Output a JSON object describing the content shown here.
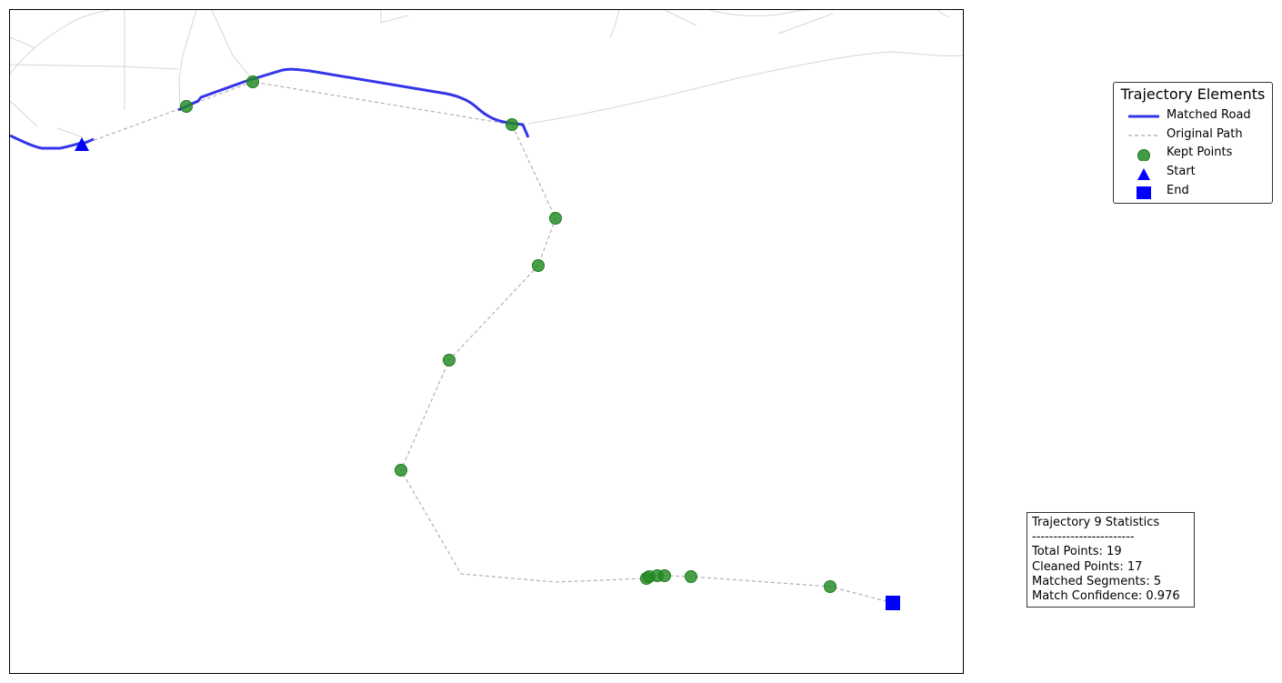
{
  "legend": {
    "title": "Trajectory Elements",
    "items": [
      {
        "label": "Matched Road",
        "symbol": "line-solid",
        "color": "#1f1fe6"
      },
      {
        "label": "Original Path",
        "symbol": "line-dashed",
        "color": "#aaaaaa"
      },
      {
        "label": "Kept Points",
        "symbol": "circle",
        "color": "#228b22"
      },
      {
        "label": "Start",
        "symbol": "triangle",
        "color": "#0000ff"
      },
      {
        "label": "End",
        "symbol": "square",
        "color": "#0000ff"
      }
    ]
  },
  "stats": {
    "title": "Trajectory 9 Statistics",
    "separator": "------------------------",
    "total_points": "Total Points: 19",
    "cleaned_points": "Cleaned Points: 17",
    "matched_segments": "Matched Segments: 5",
    "match_confidence": "Match Confidence: 0.976"
  },
  "colors": {
    "matched_road": "#1f1fe6",
    "original_path": "#aaaaaa",
    "kept_points": "#228b22",
    "start_end": "#0000ff",
    "background_roads": "#d6d6d6"
  }
}
